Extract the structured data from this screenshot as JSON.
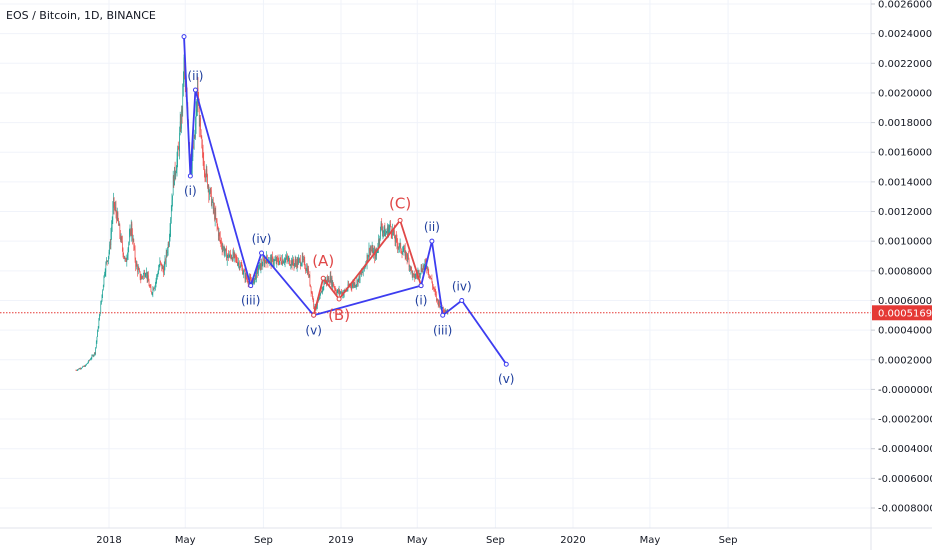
{
  "colors": {
    "grid": "#f0f3fa",
    "bull": "#26a69a",
    "bear": "#ef5350",
    "wave_blue": "#3d3df0",
    "wave_blue_text": "#1d3d9c",
    "wave_red": "#e04848",
    "price_line": "#e53935",
    "price_tag_bg": "#e53935",
    "axis_text": "#131722"
  },
  "chart_data": {
    "type": "candlestick",
    "title": "EOS / Bitcoin, 1D, BINANCE",
    "ylim": [
      -0.00088,
      0.00262
    ],
    "grid": true,
    "y_ticks": [
      0.0026,
      0.0024,
      0.0022,
      0.002,
      0.0018,
      0.0016,
      0.0014,
      0.0012,
      0.001,
      0.0008,
      0.0006,
      0.0004,
      0.0002,
      0.0,
      -0.0002,
      -0.0004,
      -0.0006,
      -0.0008
    ],
    "y_tick_labels": [
      "0.0026000",
      "0.0024000",
      "0.0022000",
      "0.0020000",
      "0.0018000",
      "0.0016000",
      "0.0014000",
      "0.0012000",
      "0.0010000",
      "0.0008000",
      "0.0006000",
      "0.0004000",
      "0.0002000",
      "-0.0000000",
      "-0.0002000",
      "-0.0004000",
      "-0.0006000",
      "-0.0008000"
    ],
    "x_ticks": [
      "2018-01-01",
      "2018-05-01",
      "2018-09-01",
      "2019-01-01",
      "2019-05-01",
      "2019-09-01",
      "2020-01-01",
      "2020-05-01",
      "2020-09-01"
    ],
    "x_tick_labels": [
      "2018",
      "May",
      "Sep",
      "2019",
      "May",
      "Sep",
      "2020",
      "May",
      "Sep"
    ],
    "last_price": 0.0005169,
    "last_price_label": "0.0005169",
    "price_path": [
      [
        "2017-11-10",
        0.00013
      ],
      [
        "2017-11-25",
        0.00016
      ],
      [
        "2017-12-10",
        0.00025
      ],
      [
        "2017-12-20",
        0.0006
      ],
      [
        "2017-12-25",
        0.0008
      ],
      [
        "2018-01-02",
        0.00095
      ],
      [
        "2018-01-08",
        0.00125
      ],
      [
        "2018-01-13",
        0.00118
      ],
      [
        "2018-01-20",
        0.001
      ],
      [
        "2018-01-27",
        0.00085
      ],
      [
        "2018-02-05",
        0.0011
      ],
      [
        "2018-02-12",
        0.00085
      ],
      [
        "2018-02-20",
        0.00075
      ],
      [
        "2018-02-28",
        0.0008
      ],
      [
        "2018-03-08",
        0.00065
      ],
      [
        "2018-03-15",
        0.00072
      ],
      [
        "2018-03-22",
        0.00085
      ],
      [
        "2018-03-28",
        0.0008
      ],
      [
        "2018-04-05",
        0.001
      ],
      [
        "2018-04-12",
        0.0014
      ],
      [
        "2018-04-20",
        0.0016
      ],
      [
        "2018-04-26",
        0.0019
      ],
      [
        "2018-04-29",
        0.0022
      ],
      [
        "2018-05-05",
        0.0018
      ],
      [
        "2018-05-10",
        0.0015
      ],
      [
        "2018-05-16",
        0.0017
      ],
      [
        "2018-05-20",
        0.002
      ],
      [
        "2018-05-27",
        0.0016
      ],
      [
        "2018-06-05",
        0.0014
      ],
      [
        "2018-06-15",
        0.0012
      ],
      [
        "2018-06-25",
        0.001
      ],
      [
        "2018-07-05",
        0.0009
      ],
      [
        "2018-07-15",
        0.0009
      ],
      [
        "2018-07-25",
        0.00085
      ],
      [
        "2018-08-05",
        0.00075
      ],
      [
        "2018-08-15",
        0.00072
      ],
      [
        "2018-08-25",
        0.00082
      ],
      [
        "2018-09-05",
        0.00088
      ],
      [
        "2018-09-20",
        0.00086
      ],
      [
        "2018-10-05",
        0.00088
      ],
      [
        "2018-10-20",
        0.00085
      ],
      [
        "2018-11-01",
        0.00087
      ],
      [
        "2018-11-10",
        0.0008
      ],
      [
        "2018-11-20",
        0.00055
      ],
      [
        "2018-11-28",
        0.0006
      ],
      [
        "2018-12-05",
        0.00072
      ],
      [
        "2018-12-15",
        0.00075
      ],
      [
        "2018-12-25",
        0.00066
      ],
      [
        "2019-01-05",
        0.00065
      ],
      [
        "2019-01-15",
        0.0007
      ],
      [
        "2019-01-25",
        0.00072
      ],
      [
        "2019-02-05",
        0.0008
      ],
      [
        "2019-02-15",
        0.00095
      ],
      [
        "2019-02-25",
        0.0009
      ],
      [
        "2019-03-05",
        0.0011
      ],
      [
        "2019-03-12",
        0.00105
      ],
      [
        "2019-03-20",
        0.0011
      ],
      [
        "2019-03-28",
        0.001
      ],
      [
        "2019-04-05",
        0.00095
      ],
      [
        "2019-04-15",
        0.0009
      ],
      [
        "2019-04-25",
        0.00075
      ],
      [
        "2019-05-05",
        0.0008
      ],
      [
        "2019-05-15",
        0.00085
      ],
      [
        "2019-05-22",
        0.00075
      ],
      [
        "2019-06-01",
        0.0006
      ],
      [
        "2019-06-10",
        0.00055
      ],
      [
        "2019-06-18",
        0.00052
      ]
    ],
    "wave_segments": [
      {
        "color_key": "wave_blue",
        "points": [
          [
            "2018-04-29",
            0.00238
          ],
          [
            "2018-05-09",
            0.00144
          ],
          [
            "2018-05-17",
            0.00202
          ],
          [
            "2018-08-12",
            0.0007
          ],
          [
            "2018-08-29",
            0.00092
          ],
          [
            "2018-11-19",
            0.0005
          ],
          [
            "2019-05-07",
            0.0007
          ]
        ]
      },
      {
        "color_key": "wave_red",
        "points": [
          [
            "2018-11-19",
            0.0005
          ],
          [
            "2018-12-04",
            0.00075
          ],
          [
            "2018-12-29",
            0.00061
          ],
          [
            "2019-04-04",
            0.00114
          ],
          [
            "2019-05-07",
            0.0007
          ]
        ]
      },
      {
        "color_key": "wave_blue",
        "points": [
          [
            "2019-05-07",
            0.0007
          ],
          [
            "2019-05-24",
            0.001
          ],
          [
            "2019-06-10",
            0.0005
          ],
          [
            "2019-07-10",
            0.0006
          ],
          [
            "2019-09-18",
            0.00017
          ]
        ]
      }
    ],
    "wave_labels": [
      {
        "text": "(i)",
        "date": "2018-05-09",
        "value": 0.00144,
        "pos": "below",
        "color_key": "wave_blue_text",
        "big": false
      },
      {
        "text": "(ii)",
        "date": "2018-05-17",
        "value": 0.00202,
        "pos": "above",
        "color_key": "wave_blue_text",
        "big": false
      },
      {
        "text": "(iii)",
        "date": "2018-08-12",
        "value": 0.0007,
        "pos": "below",
        "color_key": "wave_blue_text",
        "big": false
      },
      {
        "text": "(iv)",
        "date": "2018-08-29",
        "value": 0.00092,
        "pos": "above",
        "color_key": "wave_blue_text",
        "big": false
      },
      {
        "text": "(v)",
        "date": "2018-11-19",
        "value": 0.0005,
        "pos": "below",
        "color_key": "wave_blue_text",
        "big": false
      },
      {
        "text": "(A)",
        "date": "2018-12-04",
        "value": 0.00075,
        "pos": "above",
        "color_key": "wave_red",
        "big": true
      },
      {
        "text": "(B)",
        "date": "2018-12-29",
        "value": 0.00061,
        "pos": "below",
        "color_key": "wave_red",
        "big": true
      },
      {
        "text": "(C)",
        "date": "2019-04-04",
        "value": 0.00114,
        "pos": "above",
        "color_key": "wave_red",
        "big": true
      },
      {
        "text": "(i)",
        "date": "2019-05-07",
        "value": 0.0007,
        "pos": "below",
        "color_key": "wave_blue_text",
        "big": false
      },
      {
        "text": "(ii)",
        "date": "2019-05-24",
        "value": 0.001,
        "pos": "above",
        "color_key": "wave_blue_text",
        "big": false
      },
      {
        "text": "(iii)",
        "date": "2019-06-10",
        "value": 0.0005,
        "pos": "below",
        "color_key": "wave_blue_text",
        "big": false
      },
      {
        "text": "(iv)",
        "date": "2019-07-10",
        "value": 0.0006,
        "pos": "above",
        "color_key": "wave_blue_text",
        "big": false
      },
      {
        "text": "(v)",
        "date": "2019-09-18",
        "value": 0.00017,
        "pos": "below",
        "color_key": "wave_blue_text",
        "big": false
      }
    ]
  }
}
